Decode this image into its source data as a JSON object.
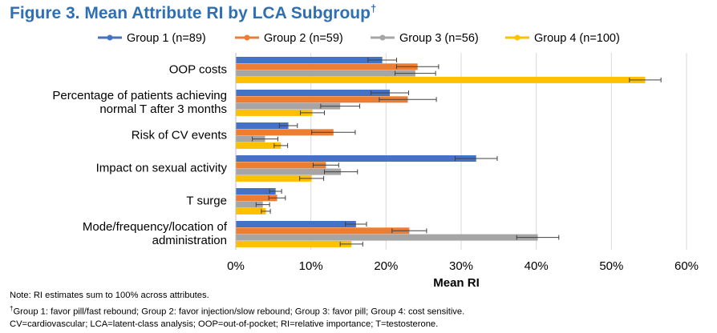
{
  "title": "Figure 3. Mean Attribute RI by LCA Subgroup",
  "title_mark": "†",
  "colors": {
    "title": "#2f6fb3"
  },
  "chart_data": {
    "type": "bar",
    "orientation": "horizontal",
    "title": "Figure 3. Mean Attribute RI by LCA Subgroup†",
    "xlabel": "Mean RI",
    "ylabel": "",
    "xlim": [
      0,
      60
    ],
    "xticks": [
      "0%",
      "10%",
      "20%",
      "30%",
      "40%",
      "50%",
      "60%"
    ],
    "x_gridlines": true,
    "legend_position": "top",
    "categories": [
      [
        "OOP costs"
      ],
      [
        "Percentage of patients achieving",
        "normal T after 3 months"
      ],
      [
        "Risk of CV events"
      ],
      [
        "Impact on sexual activity"
      ],
      [
        "T surge"
      ],
      [
        "Mode/frequency/location of",
        "administration"
      ]
    ],
    "series": [
      {
        "name": "Group 1 (n=89)",
        "color": "#4472c4",
        "values": [
          19.5,
          20.5,
          7,
          32,
          5.3,
          16
        ],
        "errors": [
          1.9,
          2.5,
          1.2,
          2.8,
          0.8,
          1.4
        ]
      },
      {
        "name": "Group 2 (n=59)",
        "color": "#ed7d31",
        "values": [
          24.2,
          22.9,
          13,
          12,
          5.5,
          23.1
        ],
        "errors": [
          2.8,
          3.8,
          2.9,
          1.7,
          1.1,
          2.3
        ]
      },
      {
        "name": "Group 3 (n=56)",
        "color": "#a5a5a5",
        "values": [
          23.9,
          13.9,
          3.9,
          14,
          3.6,
          40.2
        ],
        "errors": [
          2.7,
          2.6,
          1.7,
          2.2,
          0.9,
          2.8
        ]
      },
      {
        "name": "Group 4 (n=100)",
        "color": "#ffc000",
        "values": [
          54.5,
          10.2,
          6,
          10.1,
          4,
          15.4
        ],
        "errors": [
          2.1,
          1.6,
          0.9,
          1.6,
          0.6,
          1.5
        ]
      }
    ]
  },
  "notes": {
    "line1": "Note: RI estimates sum to 100% across attributes.",
    "line2_mark": "†",
    "line2": "Group 1: favor pill/fast rebound; Group 2: favor injection/slow rebound; Group 3: favor pill; Group 4: cost sensitive.",
    "line3": "CV=cardiovascular; LCA=latent-class analysis; OOP=out-of-pocket; RI=relative importance; T=testosterone."
  }
}
